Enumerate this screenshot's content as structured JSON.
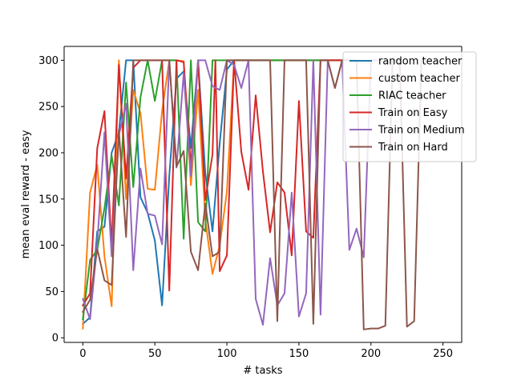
{
  "chart_data": {
    "type": "line",
    "title": "",
    "xlabel": "# tasks",
    "ylabel": "mean eval reward - easy",
    "xlim": [
      -13,
      263
    ],
    "ylim": [
      -5,
      315
    ],
    "xticks": [
      0,
      50,
      100,
      150,
      200,
      250
    ],
    "yticks": [
      0,
      50,
      100,
      150,
      200,
      250,
      300
    ],
    "grid": false,
    "legend_position": "top-right",
    "series": [
      {
        "name": "random teacher",
        "color": "#1f77b4",
        "x": [
          0,
          5,
          10,
          15,
          20,
          25,
          30,
          35,
          40,
          45,
          50,
          55,
          60,
          65,
          70,
          75,
          80,
          85,
          90,
          95,
          100,
          105,
          110,
          115,
          120,
          125,
          130,
          135,
          140,
          145,
          150,
          155,
          160,
          165,
          170,
          175,
          180
        ],
        "y": [
          15,
          22,
          115,
          120,
          200,
          222,
          300,
          300,
          152,
          135,
          105,
          35,
          175,
          280,
          288,
          205,
          300,
          178,
          115,
          210,
          290,
          300,
          300,
          300,
          300,
          300,
          300,
          300,
          300,
          300,
          300,
          300,
          300,
          300,
          300,
          300,
          300
        ]
      },
      {
        "name": "custom teacher",
        "color": "#ff7f0e",
        "x": [
          0,
          5,
          10,
          15,
          20,
          25,
          30,
          35,
          40,
          45,
          50,
          55,
          60,
          65,
          70,
          75,
          80,
          85,
          90,
          95,
          100,
          105,
          110,
          115,
          120,
          125,
          130,
          135,
          140,
          145,
          150,
          155,
          160,
          165,
          170,
          175,
          180
        ],
        "y": [
          10,
          157,
          187,
          88,
          34,
          300,
          150,
          268,
          243,
          161,
          160,
          245,
          300,
          300,
          299,
          165,
          268,
          128,
          69,
          100,
          158,
          300,
          300,
          300,
          300,
          300,
          300,
          300,
          300,
          300,
          300,
          300,
          300,
          300,
          300,
          300,
          300
        ]
      },
      {
        "name": "RIAC teacher",
        "color": "#2ca02c",
        "x": [
          0,
          5,
          10,
          15,
          20,
          25,
          30,
          35,
          40,
          45,
          50,
          55,
          60,
          65,
          70,
          75,
          80,
          85,
          90,
          95,
          100,
          105,
          110,
          115,
          120,
          125,
          130,
          135,
          140,
          145,
          150,
          155,
          160,
          165,
          170,
          175,
          180
        ],
        "y": [
          20,
          84,
          95,
          140,
          197,
          143,
          276,
          163,
          260,
          300,
          256,
          300,
          300,
          300,
          107,
          300,
          125,
          115,
          300,
          300,
          300,
          300,
          300,
          300,
          300,
          300,
          300,
          300,
          300,
          300,
          300,
          300,
          300,
          300,
          300,
          300,
          300
        ]
      },
      {
        "name": "Train on Easy",
        "color": "#d62728",
        "x": [
          0,
          5,
          10,
          15,
          20,
          25,
          30,
          35,
          40,
          45,
          50,
          55,
          60,
          65,
          70,
          75,
          80,
          85,
          90,
          92,
          95,
          100,
          105,
          110,
          115,
          120,
          125,
          130,
          135,
          140,
          145,
          150,
          155,
          160,
          165,
          170,
          175,
          180
        ],
        "y": [
          35,
          48,
          205,
          245,
          100,
          295,
          172,
          292,
          300,
          300,
          300,
          300,
          51,
          300,
          298,
          185,
          300,
          149,
          198,
          300,
          72,
          89,
          300,
          201,
          160,
          262,
          180,
          114,
          168,
          157,
          89,
          256,
          115,
          108,
          300,
          300,
          300,
          300
        ]
      },
      {
        "name": "Train on Medium",
        "color": "#9467bd",
        "x": [
          0,
          5,
          10,
          15,
          20,
          25,
          30,
          35,
          40,
          45,
          50,
          55,
          60,
          65,
          70,
          75,
          80,
          85,
          90,
          95,
          100,
          105,
          110,
          115,
          120,
          125,
          130,
          135,
          140,
          145,
          150,
          155,
          160,
          165,
          170,
          175,
          180,
          185,
          190,
          195,
          200,
          205
        ],
        "y": [
          42,
          20,
          102,
          222,
          88,
          219,
          253,
          73,
          183,
          134,
          132,
          101,
          300,
          184,
          286,
          175,
          300,
          300,
          272,
          268,
          300,
          295,
          270,
          300,
          42,
          14,
          86,
          35,
          48,
          157,
          23,
          48,
          300,
          25,
          300,
          270,
          300,
          95,
          118,
          87,
          300,
          300
        ]
      },
      {
        "name": "Train on Hard",
        "color": "#8c564b",
        "x": [
          0,
          5,
          10,
          15,
          20,
          25,
          30,
          35,
          40,
          45,
          50,
          55,
          60,
          65,
          70,
          75,
          80,
          85,
          90,
          95,
          100,
          105,
          110,
          115,
          120,
          125,
          130,
          135,
          140,
          145,
          150,
          155,
          160,
          165,
          170,
          175,
          180,
          185,
          190,
          195,
          200,
          205,
          210,
          215,
          220,
          225,
          230,
          235
        ],
        "y": [
          28,
          41,
          96,
          62,
          57,
          225,
          109,
          300,
          300,
          300,
          300,
          300,
          300,
          185,
          202,
          93,
          73,
          145,
          88,
          93,
          300,
          300,
          300,
          300,
          300,
          300,
          300,
          18,
          300,
          300,
          300,
          300,
          15,
          300,
          300,
          270,
          300,
          300,
          300,
          9,
          10,
          10,
          13,
          300,
          300,
          12,
          18,
          300
        ]
      }
    ]
  }
}
